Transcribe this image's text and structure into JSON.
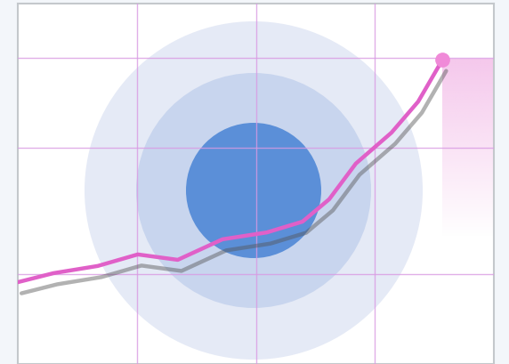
{
  "chart_data": {
    "type": "line",
    "x": [
      0,
      7.5,
      16.8,
      25.2,
      33.6,
      43,
      52.3,
      59.8,
      65.4,
      71,
      78.5,
      84.1,
      89.2
    ],
    "values": [
      22.7,
      25.2,
      27.2,
      30.4,
      28.9,
      34.6,
      36.5,
      39.5,
      45.7,
      55.6,
      64.2,
      72.8,
      84.4
    ],
    "color": "#e060c8",
    "xlim": [
      0,
      100
    ],
    "ylim": [
      0,
      100
    ],
    "xticks": [
      25,
      50,
      75
    ],
    "yticks": [
      25,
      60,
      85
    ],
    "grid": true,
    "tick_labels": false
  }
}
